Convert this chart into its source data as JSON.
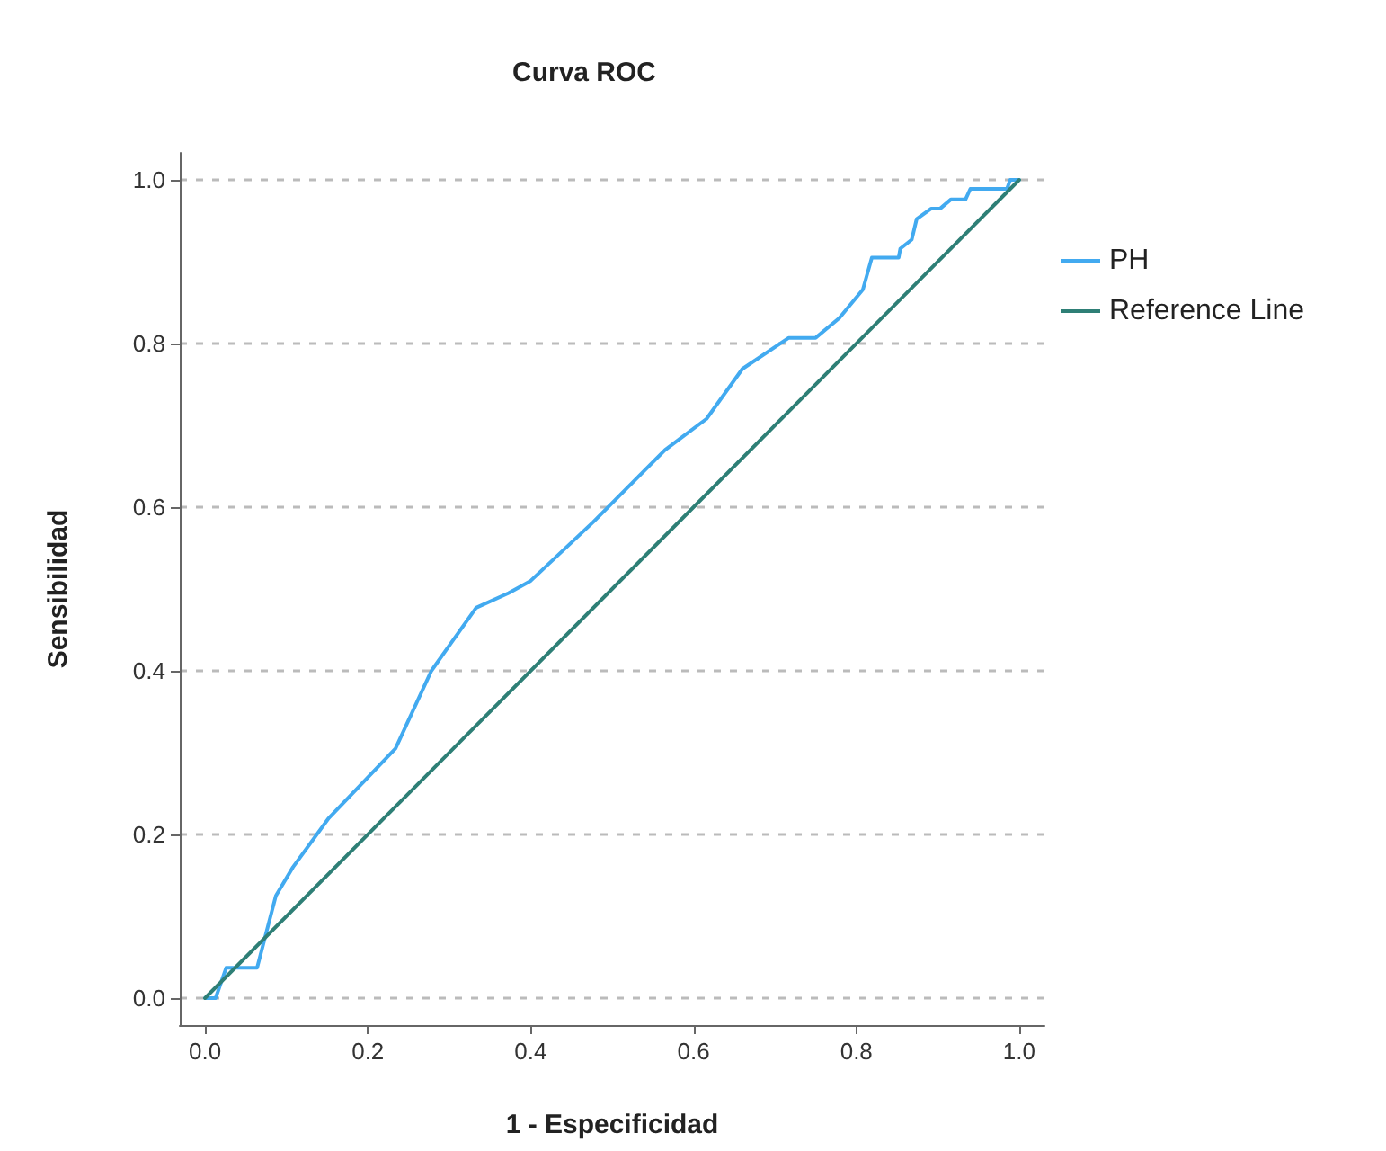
{
  "chart_data": {
    "type": "line",
    "title": "Curva ROC",
    "xlabel": "1 - Especificidad",
    "ylabel": "Sensibilidad",
    "xlim": [
      -0.031,
      1.031
    ],
    "ylim": [
      -0.033,
      1.033
    ],
    "xticks": [
      {
        "value": 0,
        "label": "0.0"
      },
      {
        "value": 0.2,
        "label": "0.2"
      },
      {
        "value": 0.4,
        "label": "0.4"
      },
      {
        "value": 0.6,
        "label": "0.6"
      },
      {
        "value": 0.8,
        "label": "0.8"
      },
      {
        "value": 1,
        "label": "1.0"
      }
    ],
    "yticks": [
      {
        "value": 0,
        "label": "0.0"
      },
      {
        "value": 0.2,
        "label": "0.2"
      },
      {
        "value": 0.4,
        "label": "0.4"
      },
      {
        "value": 0.6,
        "label": "0.6"
      },
      {
        "value": 0.8,
        "label": "0.8"
      },
      {
        "value": 1,
        "label": "1.0"
      }
    ],
    "grid": "y",
    "legend": "top right",
    "marker": "none",
    "line_style": "solid",
    "series": [
      {
        "name": "PH",
        "color": "#42aaf0",
        "x": [
          0,
          0.013,
          0.026,
          0.064,
          0.087,
          0.108,
          0.152,
          0.234,
          0.278,
          0.333,
          0.373,
          0.4,
          0.477,
          0.565,
          0.616,
          0.66,
          0.717,
          0.75,
          0.779,
          0.808,
          0.819,
          0.852,
          0.854,
          0.868,
          0.874,
          0.892,
          0.903,
          0.916,
          0.934,
          0.94,
          0.985,
          0.989,
          1.0
        ],
        "values": [
          0,
          0,
          0.037,
          0.037,
          0.125,
          0.16,
          0.22,
          0.305,
          0.4,
          0.477,
          0.495,
          0.51,
          0.582,
          0.67,
          0.708,
          0.769,
          0.807,
          0.807,
          0.831,
          0.866,
          0.905,
          0.905,
          0.916,
          0.927,
          0.952,
          0.965,
          0.965,
          0.976,
          0.976,
          0.989,
          0.989,
          1.0,
          1.0
        ]
      },
      {
        "name": "Reference Line",
        "color": "#2e7f76",
        "x": [
          0,
          1
        ],
        "values": [
          0,
          1
        ]
      }
    ]
  }
}
